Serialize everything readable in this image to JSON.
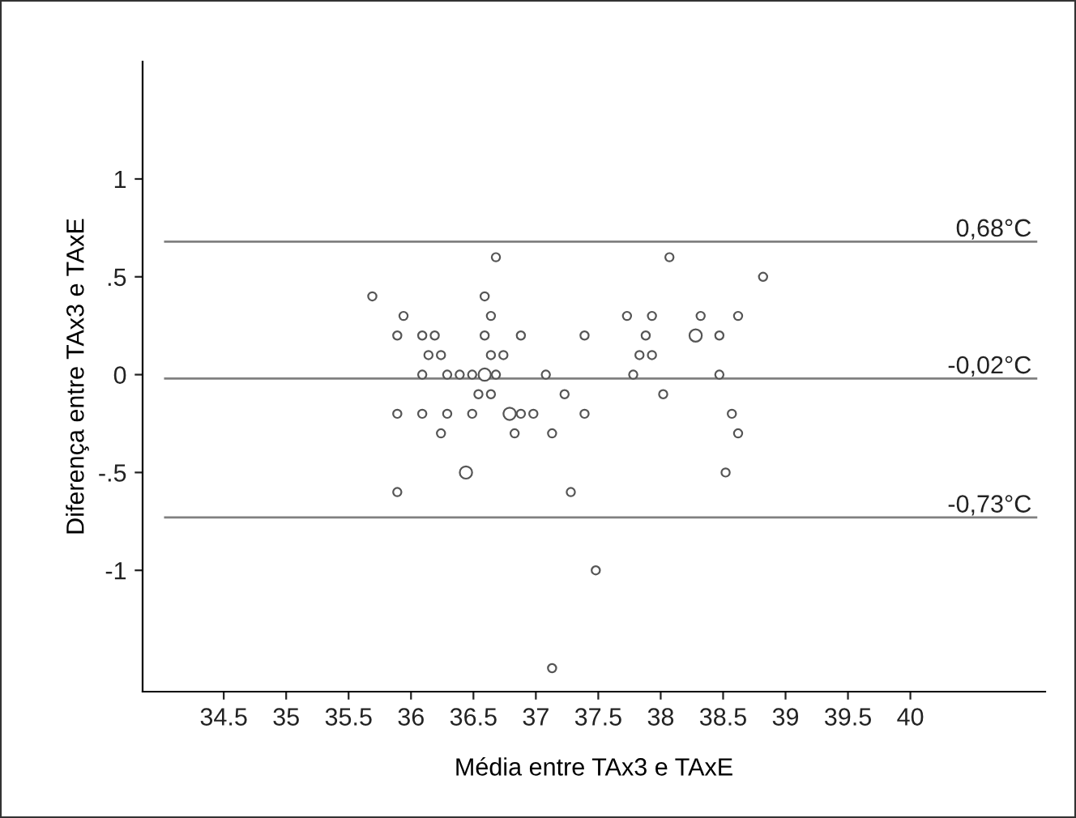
{
  "chart_data": {
    "type": "bubble",
    "xlabel": "Média entre TAx3 e TAxE",
    "ylabel": "Diferença entre TAx3 e TAxE",
    "xlim": [
      33.85,
      41.08
    ],
    "xticks": [
      34.5,
      35,
      35.5,
      36,
      36.5,
      37,
      37.5,
      38,
      38.5,
      39,
      39.5,
      40
    ],
    "ylim": [
      -1.62,
      1.6
    ],
    "yticks": [
      {
        "value": 1,
        "label": "1"
      },
      {
        "value": 0.5,
        "label": ".5"
      },
      {
        "value": 0,
        "label": "0"
      },
      {
        "value": -0.5,
        "label": "-.5"
      },
      {
        "value": -1,
        "label": "-1"
      }
    ],
    "grid": false,
    "marker": "circle",
    "series": [
      {
        "color": "#555555",
        "x": [
          35.69,
          35.94,
          35.89,
          36.09,
          36.19,
          36.14,
          36.24,
          36.09,
          36.29,
          36.39,
          36.49,
          36.59,
          36.68,
          35.89,
          36.09,
          36.29,
          36.49,
          36.24,
          35.89,
          36.44,
          36.59,
          36.64,
          36.59,
          36.88,
          36.64,
          36.74,
          36.68,
          36.54,
          36.64,
          36.79,
          36.88,
          36.98,
          36.83,
          37.08,
          37.23,
          37.13,
          37.39,
          37.39,
          37.28,
          37.48,
          37.13,
          37.73,
          37.93,
          37.88,
          37.83,
          37.93,
          37.78,
          38.02,
          38.07,
          38.28,
          38.32,
          38.47,
          38.47,
          38.62,
          38.82,
          38.57,
          38.62,
          38.52
        ],
        "values": [
          0.4,
          0.3,
          0.2,
          0.2,
          0.2,
          0.1,
          0.1,
          0,
          0,
          0,
          0,
          0,
          0,
          -0.2,
          -0.2,
          -0.2,
          -0.2,
          -0.3,
          -0.6,
          -0.5,
          0.4,
          0.3,
          0.2,
          0.2,
          0.1,
          0.1,
          0.6,
          -0.1,
          -0.1,
          -0.2,
          -0.2,
          -0.2,
          -0.3,
          0,
          -0.1,
          -0.3,
          -0.2,
          0.2,
          -0.6,
          -1.0,
          -1.5,
          0.3,
          0.3,
          0.2,
          0.1,
          0.1,
          0,
          -0.1,
          0.6,
          0.2,
          0.3,
          0.2,
          0,
          0.3,
          0.5,
          -0.2,
          -0.3,
          -0.5
        ],
        "sizes": [
          0.45,
          0.45,
          0.45,
          0.45,
          0.45,
          0.45,
          0.45,
          0.45,
          0.45,
          0.45,
          0.45,
          1,
          0.45,
          0.45,
          0.45,
          0.45,
          0.45,
          0.45,
          0.45,
          1,
          0.45,
          0.45,
          0.45,
          0.45,
          0.45,
          0.45,
          0.45,
          0.45,
          0.45,
          1,
          0.45,
          0.45,
          0.45,
          0.45,
          0.45,
          0.45,
          0.45,
          0.45,
          0.45,
          0.45,
          0.45,
          0.45,
          0.45,
          0.45,
          0.45,
          0.45,
          0.45,
          0.45,
          0.45,
          1,
          0.45,
          0.45,
          0.45,
          0.45,
          0.45,
          0.45,
          0.45,
          0.45
        ]
      }
    ],
    "ref_lines": [
      {
        "axis": "y",
        "value": 0.68,
        "label": "0,68°C",
        "color": "#808080"
      },
      {
        "axis": "y",
        "value": -0.02,
        "label": "-0,02°C",
        "color": "#808080"
      },
      {
        "axis": "y",
        "value": -0.73,
        "label": "-0,73°C",
        "color": "#808080"
      }
    ]
  }
}
